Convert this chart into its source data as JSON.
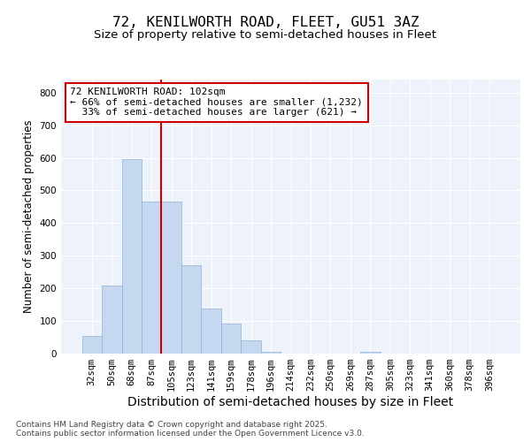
{
  "title_line1": "72, KENILWORTH ROAD, FLEET, GU51 3AZ",
  "title_line2": "Size of property relative to semi-detached houses in Fleet",
  "xlabel": "Distribution of semi-detached houses by size in Fleet",
  "ylabel": "Number of semi-detached properties",
  "bar_labels": [
    "32sqm",
    "50sqm",
    "68sqm",
    "87sqm",
    "105sqm",
    "123sqm",
    "141sqm",
    "159sqm",
    "178sqm",
    "196sqm",
    "214sqm",
    "232sqm",
    "250sqm",
    "269sqm",
    "287sqm",
    "305sqm",
    "323sqm",
    "341sqm",
    "360sqm",
    "378sqm",
    "396sqm"
  ],
  "bar_values": [
    55,
    210,
    595,
    465,
    465,
    270,
    138,
    92,
    40,
    5,
    0,
    0,
    0,
    0,
    5,
    0,
    0,
    0,
    0,
    0,
    0
  ],
  "bar_color": "#c5d8f0",
  "bar_edgecolor": "#8ab4d8",
  "background_color": "#eef2fa",
  "grid_color": "#ffffff",
  "vline_color": "#cc0000",
  "vline_pos": 4,
  "annotation_text": "72 KENILWORTH ROAD: 102sqm\n← 66% of semi-detached houses are smaller (1,232)\n  33% of semi-detached houses are larger (621) →",
  "annotation_box_color": "#cc0000",
  "ylim": [
    0,
    840
  ],
  "yticks": [
    0,
    100,
    200,
    300,
    400,
    500,
    600,
    700,
    800
  ],
  "footer_text": "Contains HM Land Registry data © Crown copyright and database right 2025.\nContains public sector information licensed under the Open Government Licence v3.0.",
  "title_fontsize": 11.5,
  "subtitle_fontsize": 9.5,
  "xlabel_fontsize": 10,
  "ylabel_fontsize": 8.5,
  "tick_fontsize": 7.5,
  "ann_fontsize": 8,
  "footer_fontsize": 6.5
}
